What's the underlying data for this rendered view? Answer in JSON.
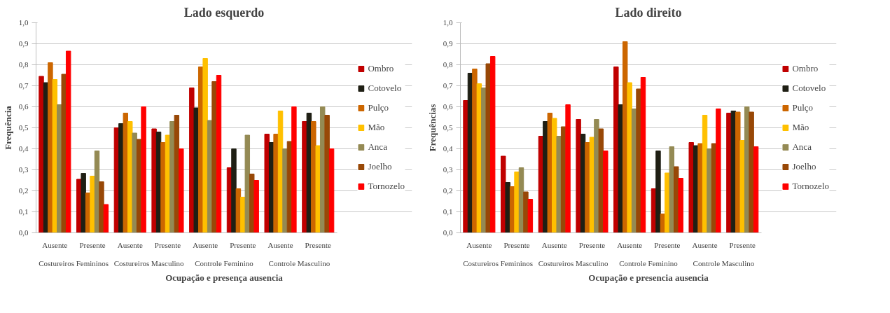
{
  "chart_data": [
    {
      "type": "bar",
      "title": "Lado esquerdo",
      "xlabel": "Ocupação e presença ausencia",
      "ylabel": "Frequência",
      "categories": [
        "Ausente",
        "Presente",
        "Ausente",
        "Presente",
        "Ausente",
        "Presente",
        "Ausente",
        "Presente"
      ],
      "annotations": [
        "Costureiros Femininos",
        "Costureiros Masculino",
        "Controle Feminino",
        "Controle Masculino"
      ],
      "ylim": [
        0,
        1
      ],
      "yticks": [
        {
          "value": 0,
          "label": "0,0"
        },
        {
          "value": 0.1,
          "label": "0,1"
        },
        {
          "value": 0.2,
          "label": "0,2"
        },
        {
          "value": 0.3,
          "label": "0,3"
        },
        {
          "value": 0.4,
          "label": "0,4"
        },
        {
          "value": 0.5,
          "label": "0,5"
        },
        {
          "value": 0.6,
          "label": "0,6"
        },
        {
          "value": 0.7,
          "label": "0,7"
        },
        {
          "value": 0.8,
          "label": "0,8"
        },
        {
          "value": 0.9,
          "label": "0,9"
        },
        {
          "value": 1,
          "label": "1,0"
        }
      ],
      "grid": "y",
      "legend": "right",
      "series": [
        {
          "name": "Ombro",
          "color": "#c00000",
          "values": [
            0.745,
            0.255,
            0.5,
            0.495,
            0.69,
            0.31,
            0.47,
            0.53
          ]
        },
        {
          "name": "Cotovelo",
          "color": "#1f1f14",
          "values": [
            0.715,
            0.283,
            0.52,
            0.48,
            0.595,
            0.4,
            0.43,
            0.57
          ]
        },
        {
          "name": "Pulço",
          "color": "#cc6600",
          "values": [
            0.81,
            0.19,
            0.57,
            0.43,
            0.79,
            0.21,
            0.47,
            0.53
          ]
        },
        {
          "name": "Mão",
          "color": "#ffc000",
          "values": [
            0.73,
            0.27,
            0.53,
            0.465,
            0.83,
            0.17,
            0.58,
            0.415
          ]
        },
        {
          "name": "Anca",
          "color": "#948a54",
          "values": [
            0.61,
            0.39,
            0.475,
            0.53,
            0.535,
            0.465,
            0.4,
            0.6
          ]
        },
        {
          "name": "Joelho",
          "color": "#984807",
          "values": [
            0.755,
            0.243,
            0.445,
            0.56,
            0.72,
            0.28,
            0.435,
            0.56
          ]
        },
        {
          "name": "Tornozelo",
          "color": "#ff0000",
          "values": [
            0.865,
            0.135,
            0.6,
            0.4,
            0.75,
            0.25,
            0.6,
            0.4
          ]
        }
      ]
    },
    {
      "type": "bar",
      "title": "Lado direito",
      "xlabel": "Ocupação e presencia ausencia",
      "ylabel": "Frequências",
      "categories": [
        "Ausente",
        "Presente",
        "Ausente",
        "Presente",
        "Ausente",
        "Presente",
        "Ausente",
        "Presente"
      ],
      "annotations": [
        "Costureiros Femininos",
        "Costureiros Masculino",
        "Controle Feminino",
        "Controle Masculino"
      ],
      "ylim": [
        0,
        1
      ],
      "yticks": [
        {
          "value": 0,
          "label": "0,0"
        },
        {
          "value": 0.1,
          "label": "0,1"
        },
        {
          "value": 0.2,
          "label": "0,2"
        },
        {
          "value": 0.3,
          "label": "0,3"
        },
        {
          "value": 0.4,
          "label": "0,4"
        },
        {
          "value": 0.5,
          "label": "0,5"
        },
        {
          "value": 0.6,
          "label": "0,6"
        },
        {
          "value": 0.7,
          "label": "0,7"
        },
        {
          "value": 0.8,
          "label": "0,8"
        },
        {
          "value": 0.9,
          "label": "0,9"
        },
        {
          "value": 1,
          "label": "1,0"
        }
      ],
      "grid": "y",
      "legend": "right",
      "series": [
        {
          "name": "Ombro",
          "color": "#c00000",
          "values": [
            0.63,
            0.365,
            0.46,
            0.54,
            0.79,
            0.21,
            0.43,
            0.57
          ]
        },
        {
          "name": "Cotovelo",
          "color": "#1f1f14",
          "values": [
            0.76,
            0.24,
            0.53,
            0.47,
            0.61,
            0.39,
            0.415,
            0.58
          ]
        },
        {
          "name": "Pulço",
          "color": "#cc6600",
          "values": [
            0.78,
            0.22,
            0.57,
            0.43,
            0.91,
            0.09,
            0.425,
            0.575
          ]
        },
        {
          "name": "Mão",
          "color": "#ffc000",
          "values": [
            0.71,
            0.29,
            0.545,
            0.455,
            0.715,
            0.285,
            0.56,
            0.44
          ]
        },
        {
          "name": "Anca",
          "color": "#948a54",
          "values": [
            0.69,
            0.31,
            0.46,
            0.54,
            0.59,
            0.41,
            0.4,
            0.6
          ]
        },
        {
          "name": "Joelho",
          "color": "#984807",
          "values": [
            0.805,
            0.195,
            0.505,
            0.495,
            0.685,
            0.315,
            0.425,
            0.575
          ]
        },
        {
          "name": "Tornozelo",
          "color": "#ff0000",
          "values": [
            0.84,
            0.16,
            0.61,
            0.39,
            0.74,
            0.26,
            0.59,
            0.41
          ]
        }
      ]
    }
  ]
}
